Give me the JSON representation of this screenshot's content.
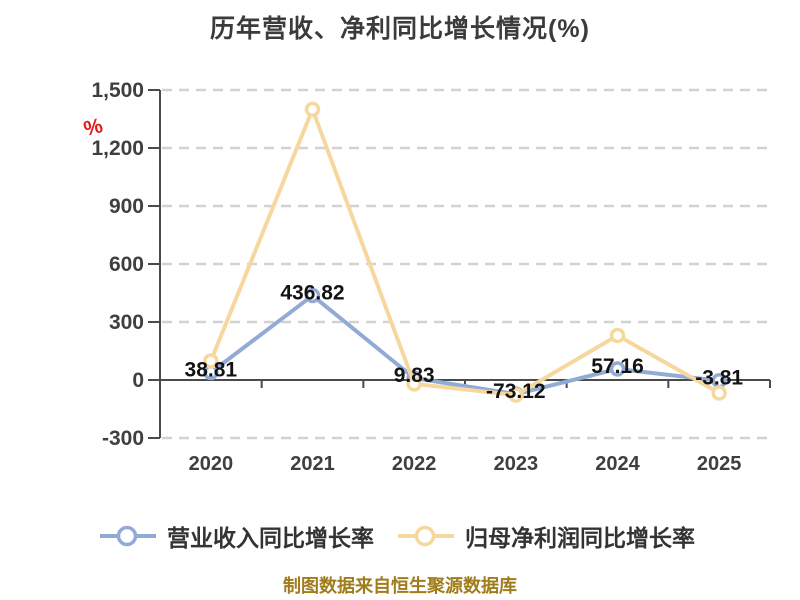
{
  "title": "历年营收、净利同比增长情况(%)",
  "y_axis_unit": "%",
  "source_note": "制图数据来自恒生聚源数据库",
  "colors": {
    "revenue_line": "#92abd6",
    "profit_line": "#f6d89e",
    "axis": "#4a4a4a",
    "gridline": "#d2d2d2",
    "tick_label": "#3f3f3f",
    "data_label": "#131313",
    "unit_symbol": "#e8151a",
    "source_text": "#a07c1c",
    "marker_fill": "#ffffff"
  },
  "legend": {
    "items": [
      {
        "label": "营业收入同比增长率",
        "color": "#92abd6"
      },
      {
        "label": "归母净利润同比增长率",
        "color": "#f6d89e"
      }
    ]
  },
  "chart_data": {
    "type": "line",
    "title": "历年营收、净利同比增长情况(%)",
    "categories": [
      "2020",
      "2021",
      "2022",
      "2023",
      "2024",
      "2025"
    ],
    "series": [
      {
        "name": "营业收入同比增长率",
        "color": "#92abd6",
        "values": [
          38.81,
          436.82,
          9.83,
          -73.12,
          57.16,
          -3.81
        ],
        "point_labels": [
          "38.81",
          "436.82",
          "9.83",
          "-73.12",
          "57.16",
          "-3.81"
        ]
      },
      {
        "name": "归母净利润同比增长率",
        "color": "#f6d89e",
        "values": [
          98,
          1400,
          -20,
          -78,
          230,
          -67
        ],
        "point_labels": []
      }
    ],
    "ylim": [
      -300,
      1500
    ],
    "yticks": [
      {
        "value": 1500,
        "label": "1,500"
      },
      {
        "value": 1200,
        "label": "1,200"
      },
      {
        "value": 900,
        "label": "900"
      },
      {
        "value": 600,
        "label": "600"
      },
      {
        "value": 300,
        "label": "300"
      },
      {
        "value": 0,
        "label": "0"
      },
      {
        "value": -300,
        "label": "-300"
      }
    ],
    "y_unit": "%",
    "grid": "horizontal-dashed",
    "legend_position": "bottom"
  }
}
